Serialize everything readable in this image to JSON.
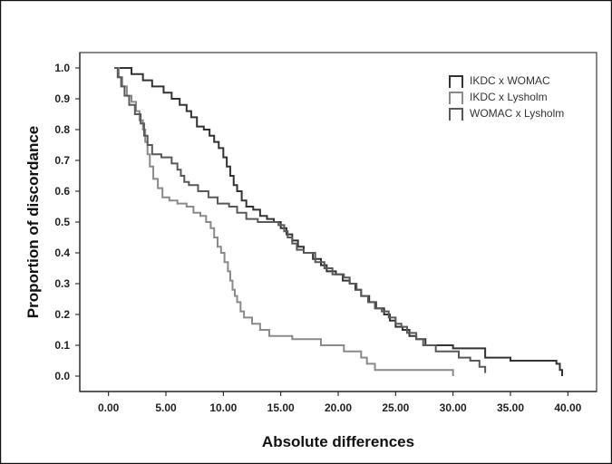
{
  "chart_data": {
    "type": "line",
    "title": "",
    "xlabel": "Absolute differences",
    "ylabel": "Proportion of discordance",
    "xlim": [
      -2.5,
      42.5
    ],
    "ylim": [
      -0.05,
      1.05
    ],
    "grid": false,
    "legend_position": "top-right",
    "x_ticks": [
      0,
      5,
      10,
      15,
      20,
      25,
      30,
      35,
      40
    ],
    "x_tick_labels": [
      "0.00",
      "5.00",
      "10.00",
      "15.00",
      "20.00",
      "25.00",
      "30.00",
      "35.00",
      "40.00"
    ],
    "y_ticks": [
      0,
      0.1,
      0.2,
      0.3,
      0.4,
      0.5,
      0.6,
      0.7,
      0.8,
      0.9,
      1.0
    ],
    "y_tick_labels": [
      "0.0",
      "0.1",
      "0.2",
      "0.3",
      "0.4",
      "0.5",
      "0.6",
      "0.7",
      "0.8",
      "0.9",
      "1.0"
    ],
    "series": [
      {
        "name": "IKDC x WOMAC",
        "color": "#333333",
        "points": [
          [
            0.5,
            1.0
          ],
          [
            2.0,
            0.98
          ],
          [
            3.0,
            0.96
          ],
          [
            3.8,
            0.94
          ],
          [
            4.8,
            0.92
          ],
          [
            5.5,
            0.9
          ],
          [
            6.2,
            0.88
          ],
          [
            6.8,
            0.86
          ],
          [
            7.2,
            0.84
          ],
          [
            7.7,
            0.81
          ],
          [
            8.3,
            0.8
          ],
          [
            8.8,
            0.78
          ],
          [
            9.2,
            0.76
          ],
          [
            9.6,
            0.74
          ],
          [
            10.0,
            0.71
          ],
          [
            10.3,
            0.68
          ],
          [
            10.6,
            0.65
          ],
          [
            10.9,
            0.62
          ],
          [
            11.2,
            0.6
          ],
          [
            11.6,
            0.57
          ],
          [
            12.0,
            0.55
          ],
          [
            12.6,
            0.54
          ],
          [
            13.2,
            0.52
          ],
          [
            13.8,
            0.51
          ],
          [
            14.4,
            0.5
          ],
          [
            15.0,
            0.48
          ],
          [
            15.5,
            0.46
          ],
          [
            16.0,
            0.44
          ],
          [
            16.5,
            0.42
          ],
          [
            17.0,
            0.4
          ],
          [
            17.8,
            0.38
          ],
          [
            18.5,
            0.36
          ],
          [
            19.0,
            0.34
          ],
          [
            19.8,
            0.33
          ],
          [
            20.4,
            0.31
          ],
          [
            21.0,
            0.3
          ],
          [
            21.5,
            0.28
          ],
          [
            22.0,
            0.26
          ],
          [
            22.7,
            0.24
          ],
          [
            23.3,
            0.22
          ],
          [
            24.0,
            0.2
          ],
          [
            24.5,
            0.18
          ],
          [
            25.0,
            0.16
          ],
          [
            25.6,
            0.15
          ],
          [
            26.2,
            0.13
          ],
          [
            26.8,
            0.12
          ],
          [
            27.6,
            0.1
          ],
          [
            30.0,
            0.09
          ],
          [
            32.8,
            0.06
          ],
          [
            35.0,
            0.05
          ],
          [
            39.0,
            0.04
          ],
          [
            39.3,
            0.02
          ],
          [
            39.5,
            0.0
          ]
        ]
      },
      {
        "name": "IKDC x Lysholm",
        "color": "#8a8a8a",
        "points": [
          [
            0.5,
            1.0
          ],
          [
            0.9,
            0.97
          ],
          [
            1.2,
            0.94
          ],
          [
            1.6,
            0.91
          ],
          [
            2.0,
            0.89
          ],
          [
            2.4,
            0.86
          ],
          [
            2.7,
            0.83
          ],
          [
            3.0,
            0.8
          ],
          [
            3.2,
            0.76
          ],
          [
            3.4,
            0.72
          ],
          [
            3.6,
            0.68
          ],
          [
            3.9,
            0.64
          ],
          [
            4.3,
            0.61
          ],
          [
            4.7,
            0.58
          ],
          [
            5.3,
            0.57
          ],
          [
            6.0,
            0.56
          ],
          [
            6.8,
            0.55
          ],
          [
            7.4,
            0.53
          ],
          [
            8.0,
            0.52
          ],
          [
            8.5,
            0.5
          ],
          [
            8.9,
            0.48
          ],
          [
            9.2,
            0.45
          ],
          [
            9.5,
            0.42
          ],
          [
            9.8,
            0.4
          ],
          [
            10.1,
            0.37
          ],
          [
            10.4,
            0.34
          ],
          [
            10.6,
            0.31
          ],
          [
            10.8,
            0.28
          ],
          [
            11.0,
            0.26
          ],
          [
            11.2,
            0.24
          ],
          [
            11.5,
            0.21
          ],
          [
            11.8,
            0.19
          ],
          [
            12.5,
            0.17
          ],
          [
            13.2,
            0.15
          ],
          [
            14.0,
            0.13
          ],
          [
            16.0,
            0.12
          ],
          [
            18.5,
            0.1
          ],
          [
            20.5,
            0.08
          ],
          [
            22.0,
            0.06
          ],
          [
            22.5,
            0.04
          ],
          [
            23.2,
            0.02
          ],
          [
            30.0,
            0.0
          ]
        ]
      },
      {
        "name": "WOMAC x Lysholm",
        "color": "#595959",
        "points": [
          [
            0.5,
            1.0
          ],
          [
            0.8,
            0.97
          ],
          [
            1.1,
            0.94
          ],
          [
            1.4,
            0.91
          ],
          [
            1.8,
            0.88
          ],
          [
            2.3,
            0.85
          ],
          [
            2.8,
            0.82
          ],
          [
            3.1,
            0.78
          ],
          [
            3.4,
            0.75
          ],
          [
            3.8,
            0.72
          ],
          [
            4.6,
            0.71
          ],
          [
            5.5,
            0.69
          ],
          [
            6.0,
            0.67
          ],
          [
            6.3,
            0.65
          ],
          [
            6.6,
            0.63
          ],
          [
            7.0,
            0.62
          ],
          [
            7.8,
            0.6
          ],
          [
            8.7,
            0.58
          ],
          [
            9.5,
            0.56
          ],
          [
            10.5,
            0.55
          ],
          [
            11.2,
            0.53
          ],
          [
            12.0,
            0.51
          ],
          [
            13.0,
            0.5
          ],
          [
            14.8,
            0.49
          ],
          [
            15.3,
            0.47
          ],
          [
            15.6,
            0.45
          ],
          [
            16.0,
            0.43
          ],
          [
            16.4,
            0.41
          ],
          [
            17.0,
            0.4
          ],
          [
            18.0,
            0.37
          ],
          [
            18.8,
            0.35
          ],
          [
            19.5,
            0.33
          ],
          [
            20.5,
            0.32
          ],
          [
            21.0,
            0.3
          ],
          [
            21.6,
            0.28
          ],
          [
            22.0,
            0.26
          ],
          [
            22.6,
            0.24
          ],
          [
            23.2,
            0.22
          ],
          [
            23.8,
            0.21
          ],
          [
            24.4,
            0.19
          ],
          [
            25.0,
            0.17
          ],
          [
            25.5,
            0.16
          ],
          [
            26.0,
            0.14
          ],
          [
            26.8,
            0.12
          ],
          [
            27.4,
            0.1
          ],
          [
            28.5,
            0.08
          ],
          [
            30.5,
            0.06
          ],
          [
            31.5,
            0.05
          ],
          [
            32.3,
            0.03
          ],
          [
            32.8,
            0.01
          ]
        ]
      }
    ],
    "legend": [
      {
        "name": "IKDC x WOMAC",
        "color": "#333333"
      },
      {
        "name": "IKDC x Lysholm",
        "color": "#8a8a8a"
      },
      {
        "name": "WOMAC x Lysholm",
        "color": "#595959"
      }
    ]
  }
}
